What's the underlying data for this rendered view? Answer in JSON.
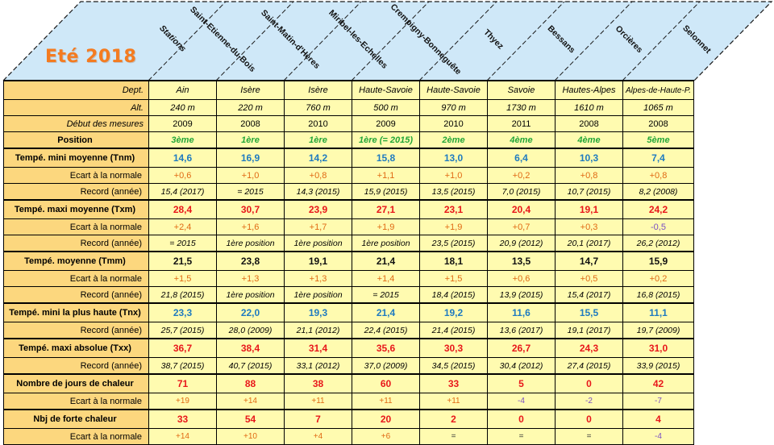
{
  "title": "Eté 2018",
  "stations_label": "Stations",
  "stations": [
    "Saint-Etienne-du-Bois",
    "Saint-Matin-d'Hères",
    "Miribel-les-Echelles",
    "Crempigny-Bonneguête",
    "Thyez",
    "Bessans",
    "Orcières",
    "Selonnet"
  ],
  "info_rows": [
    {
      "label": "Dept.",
      "values": [
        "Ain",
        "Isère",
        "Isère",
        "Haute-Savoie",
        "Haute-Savoie",
        "Savoie",
        "Hautes-Alpes",
        "Alpes-de-Haute-P."
      ]
    },
    {
      "label": "Alt.",
      "values": [
        "240 m",
        "220 m",
        "760 m",
        "500 m",
        "970 m",
        "1730 m",
        "1610 m",
        "1065 m"
      ]
    },
    {
      "label": "Début des mesures",
      "values": [
        "2009",
        "2008",
        "2010",
        "2009",
        "2010",
        "2011",
        "2008",
        "2008"
      ]
    }
  ],
  "position": {
    "label": "Position",
    "values": [
      "3ème",
      "1ère",
      "1ère",
      "1ère (= 2015)",
      "2ème",
      "4ème",
      "4ème",
      "5ème"
    ]
  },
  "sections": [
    {
      "label": "Tempé. mini moyenne (Tnm)",
      "values": [
        "14,6",
        "16,9",
        "14,2",
        "15,8",
        "13,0",
        "6,4",
        "10,3",
        "7,4"
      ],
      "sub": [
        {
          "label": "Ecart à la normale",
          "values": [
            "+0,6",
            "+1,0",
            "+0,8",
            "+1,1",
            "+1,0",
            "+0,2",
            "+0,8",
            "+0,8"
          ]
        },
        {
          "label": "Record (année)",
          "values": [
            "15,4 (2017)",
            "= 2015",
            "14,3 (2015)",
            "15,9 (2015)",
            "13,5 (2015)",
            "7,0 (2015)",
            "10,7 (2015)",
            "8,2 (2008)"
          ]
        }
      ]
    },
    {
      "label": "Tempé. maxi moyenne (Txm)",
      "values": [
        "28,4",
        "30,7",
        "23,9",
        "27,1",
        "23,1",
        "20,4",
        "19,1",
        "24,2"
      ],
      "sub": [
        {
          "label": "Ecart à la normale",
          "values": [
            "+2,4",
            "+1,6",
            "+1,7",
            "+1,9",
            "+1,9",
            "+0,7",
            "+0,3",
            "-0,5"
          ]
        },
        {
          "label": "Record (année)",
          "values": [
            "= 2015",
            "1ère position",
            "1ère position",
            "1ère position",
            "23,5 (2015)",
            "20,9 (2012)",
            "20,1 (2017)",
            "26,2 (2012)"
          ]
        }
      ]
    },
    {
      "label": "Tempé. moyenne (Tmm)",
      "values": [
        "21,5",
        "23,8",
        "19,1",
        "21,4",
        "18,1",
        "13,5",
        "14,7",
        "15,9"
      ],
      "sub": [
        {
          "label": "Ecart à la normale",
          "values": [
            "+1,5",
            "+1,3",
            "+1,3",
            "+1,4",
            "+1,5",
            "+0,6",
            "+0,5",
            "+0,2"
          ]
        },
        {
          "label": "Record (année)",
          "values": [
            "21,8 (2015)",
            "1ère position",
            "1ère position",
            "= 2015",
            "18,4 (2015)",
            "13,9 (2015)",
            "15,4 (2017)",
            "16,8 (2015)"
          ]
        }
      ]
    },
    {
      "label": "Tempé. mini la plus haute (Tnx)",
      "values": [
        "23,3",
        "22,0",
        "19,3",
        "21,4",
        "19,2",
        "11,6",
        "15,5",
        "11,1"
      ],
      "sub": [
        {
          "label": "Record (année)",
          "values": [
            "25,7 (2015)",
            "28,0 (2009)",
            "21,1 (2012)",
            "22,4 (2015)",
            "21,4 (2015)",
            "13,6 (2017)",
            "19,1 (2017)",
            "19,7 (2009)"
          ]
        }
      ]
    },
    {
      "label": "Tempé. maxi absolue (Txx)",
      "values": [
        "36,7",
        "38,4",
        "31,4",
        "35,6",
        "30,3",
        "26,7",
        "24,3",
        "31,0"
      ],
      "sub": [
        {
          "label": "Record (année)",
          "values": [
            "38,7 (2015)",
            "40,7 (2015)",
            "33,1 (2012)",
            "37,0 (2009)",
            "34,5 (2015)",
            "30,4 (2012)",
            "27,4 (2015)",
            "33,9 (2015)"
          ]
        }
      ]
    },
    {
      "label": "Nombre de jours de chaleur",
      "values": [
        "71",
        "88",
        "38",
        "60",
        "33",
        "5",
        "0",
        "42"
      ],
      "sub": [
        {
          "label": "Ecart à la normale",
          "values": [
            "+19",
            "+14",
            "+11",
            "+11",
            "+11",
            "-4",
            "-2",
            "-7"
          ]
        }
      ]
    },
    {
      "label": "Nbj de forte chaleur",
      "values": [
        "33",
        "54",
        "7",
        "20",
        "2",
        "0",
        "0",
        "4"
      ],
      "sub": [
        {
          "label": "Ecart à la normale",
          "values": [
            "+14",
            "+10",
            "+4",
            "+6",
            "=",
            "=",
            "=",
            "-4"
          ]
        }
      ]
    }
  ],
  "colors": {
    "header_fill": "#cfe8f8",
    "label_fill": "#fcd77e",
    "cell_fill": "#fffbb0",
    "title": "#f47b20",
    "position": "#22a638",
    "blue": "#1f7bc0",
    "red": "#e8171b",
    "orange": "#e06a14",
    "purple": "#7a4fc4",
    "neutral": "#333333"
  }
}
